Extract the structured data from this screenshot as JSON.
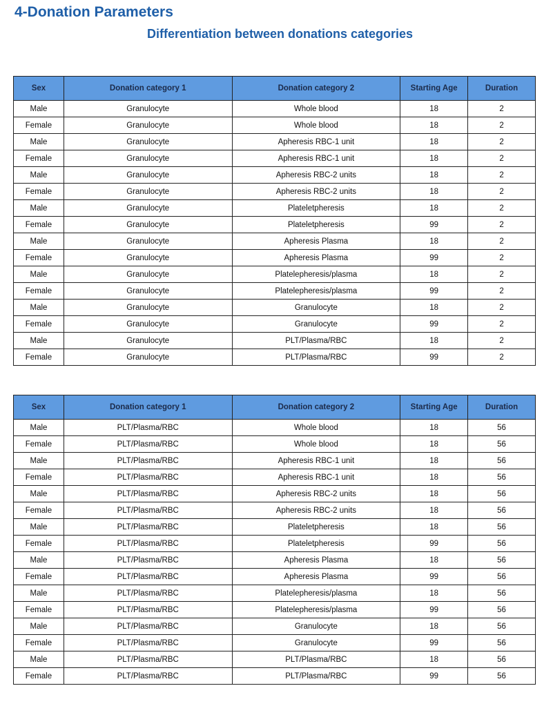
{
  "title": "4-Donation Parameters",
  "subtitle": "Differentiation between donations categories",
  "colors": {
    "title": "#1f5fa8",
    "header_bg": "#5f9be0"
  },
  "tables": [
    {
      "headers": [
        "Sex",
        "Donation category 1",
        "Donation category 2",
        "Starting Age",
        "Duration"
      ],
      "rows": [
        [
          "Male",
          "Granulocyte",
          "Whole blood",
          "18",
          "2"
        ],
        [
          "Female",
          "Granulocyte",
          "Whole blood",
          "18",
          "2"
        ],
        [
          "Male",
          "Granulocyte",
          "Apheresis RBC-1 unit",
          "18",
          "2"
        ],
        [
          "Female",
          "Granulocyte",
          "Apheresis RBC-1 unit",
          "18",
          "2"
        ],
        [
          "Male",
          "Granulocyte",
          "Apheresis RBC-2 units",
          "18",
          "2"
        ],
        [
          "Female",
          "Granulocyte",
          "Apheresis RBC-2 units",
          "18",
          "2"
        ],
        [
          "Male",
          "Granulocyte",
          "Plateletpheresis",
          "18",
          "2"
        ],
        [
          "Female",
          "Granulocyte",
          "Plateletpheresis",
          "99",
          "2"
        ],
        [
          "Male",
          "Granulocyte",
          "Apheresis Plasma",
          "18",
          "2"
        ],
        [
          "Female",
          "Granulocyte",
          "Apheresis Plasma",
          "99",
          "2"
        ],
        [
          "Male",
          "Granulocyte",
          "Platelepheresis/plasma",
          "18",
          "2"
        ],
        [
          "Female",
          "Granulocyte",
          "Platelepheresis/plasma",
          "99",
          "2"
        ],
        [
          "Male",
          "Granulocyte",
          "Granulocyte",
          "18",
          "2"
        ],
        [
          "Female",
          "Granulocyte",
          "Granulocyte",
          "99",
          "2"
        ],
        [
          "Male",
          "Granulocyte",
          "PLT/Plasma/RBC",
          "18",
          "2"
        ],
        [
          "Female",
          "Granulocyte",
          "PLT/Plasma/RBC",
          "99",
          "2"
        ]
      ]
    },
    {
      "headers": [
        "Sex",
        "Donation category 1",
        "Donation category 2",
        "Starting Age",
        "Duration"
      ],
      "rows": [
        [
          "Male",
          "PLT/Plasma/RBC",
          "Whole blood",
          "18",
          "56"
        ],
        [
          "Female",
          "PLT/Plasma/RBC",
          "Whole blood",
          "18",
          "56"
        ],
        [
          "Male",
          "PLT/Plasma/RBC",
          "Apheresis RBC-1 unit",
          "18",
          "56"
        ],
        [
          "Female",
          "PLT/Plasma/RBC",
          "Apheresis RBC-1 unit",
          "18",
          "56"
        ],
        [
          "Male",
          "PLT/Plasma/RBC",
          "Apheresis RBC-2 units",
          "18",
          "56"
        ],
        [
          "Female",
          "PLT/Plasma/RBC",
          "Apheresis RBC-2 units",
          "18",
          "56"
        ],
        [
          "Male",
          "PLT/Plasma/RBC",
          "Plateletpheresis",
          "18",
          "56"
        ],
        [
          "Female",
          "PLT/Plasma/RBC",
          "Plateletpheresis",
          "99",
          "56"
        ],
        [
          "Male",
          "PLT/Plasma/RBC",
          "Apheresis Plasma",
          "18",
          "56"
        ],
        [
          "Female",
          "PLT/Plasma/RBC",
          "Apheresis Plasma",
          "99",
          "56"
        ],
        [
          "Male",
          "PLT/Plasma/RBC",
          "Platelepheresis/plasma",
          "18",
          "56"
        ],
        [
          "Female",
          "PLT/Plasma/RBC",
          "Platelepheresis/plasma",
          "99",
          "56"
        ],
        [
          "Male",
          "PLT/Plasma/RBC",
          "Granulocyte",
          "18",
          "56"
        ],
        [
          "Female",
          "PLT/Plasma/RBC",
          "Granulocyte",
          "99",
          "56"
        ],
        [
          "Male",
          "PLT/Plasma/RBC",
          "PLT/Plasma/RBC",
          "18",
          "56"
        ],
        [
          "Female",
          "PLT/Plasma/RBC",
          "PLT/Plasma/RBC",
          "99",
          "56"
        ]
      ]
    }
  ]
}
